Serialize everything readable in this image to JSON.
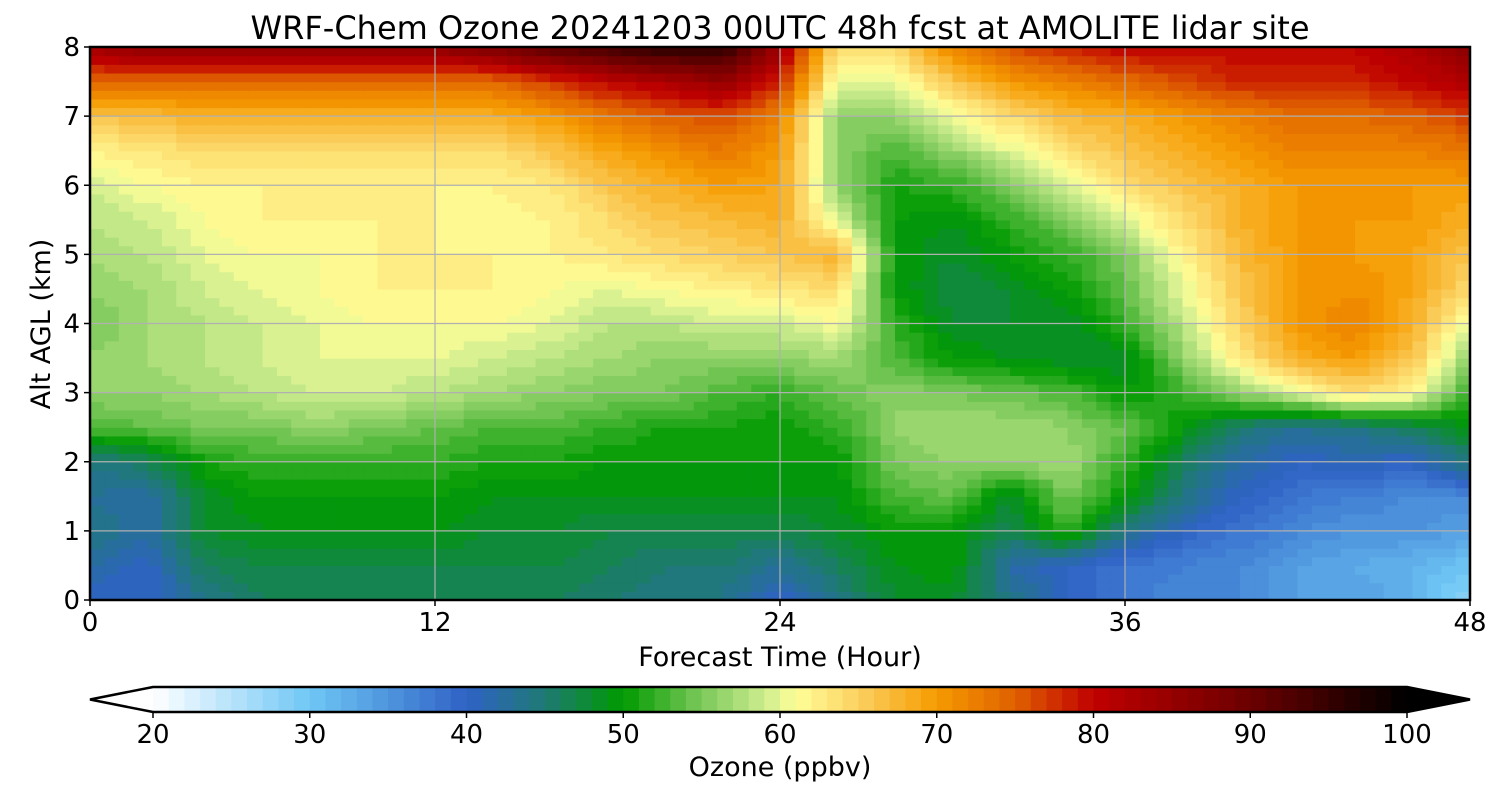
{
  "chart_data": {
    "type": "heatmap",
    "title": "WRF-Chem Ozone  20241203 00UTC 48h fcst at AMOLITE lidar site",
    "xlabel": "Forecast Time (Hour)",
    "ylabel": "Alt AGL (km)",
    "xlim": [
      0,
      48
    ],
    "ylim": [
      0,
      8
    ],
    "xticks": [
      "0",
      "12",
      "24",
      "36",
      "48"
    ],
    "yticks": [
      "0",
      "1",
      "2",
      "3",
      "4",
      "5",
      "6",
      "7",
      "8"
    ],
    "grid": true,
    "x": [
      0,
      2,
      4,
      6,
      8,
      10,
      12,
      14,
      16,
      18,
      20,
      22,
      24,
      26,
      28,
      30,
      32,
      34,
      36,
      38,
      40,
      42,
      44,
      46,
      48
    ],
    "y": [
      0,
      0.5,
      1,
      1.5,
      2,
      2.5,
      3,
      3.5,
      4,
      4.5,
      5,
      5.5,
      6,
      6.5,
      7,
      7.5,
      8
    ],
    "z": [
      [
        40,
        40,
        44,
        46,
        46,
        46,
        46,
        46,
        46,
        45,
        44,
        44,
        40,
        44,
        48,
        48,
        44,
        40,
        38,
        36,
        36,
        34,
        34,
        32,
        28
      ],
      [
        42,
        40,
        46,
        47,
        47,
        47,
        47,
        47,
        47,
        46,
        45,
        45,
        43,
        46,
        49,
        50,
        42,
        40,
        38,
        37,
        36,
        34,
        33,
        32,
        30
      ],
      [
        44,
        42,
        48,
        49,
        49,
        49,
        49,
        48,
        48,
        47,
        47,
        47,
        47,
        48,
        50,
        50,
        46,
        52,
        44,
        40,
        38,
        36,
        35,
        35,
        34
      ],
      [
        43,
        42,
        48,
        50,
        50,
        50,
        50,
        49,
        49,
        49,
        49,
        49,
        49,
        49,
        53,
        54,
        48,
        55,
        50,
        44,
        40,
        38,
        37,
        36,
        36
      ],
      [
        44,
        46,
        51,
        52,
        52,
        52,
        52,
        51,
        51,
        50,
        50,
        50,
        50,
        50,
        55,
        56,
        56,
        57,
        52,
        46,
        42,
        40,
        41,
        40,
        45
      ],
      [
        53,
        54,
        55,
        55,
        56,
        55,
        54,
        53,
        53,
        52,
        51,
        51,
        50,
        52,
        56,
        57,
        57,
        56,
        54,
        50,
        45,
        43,
        44,
        46,
        49
      ],
      [
        56,
        56,
        57,
        58,
        59,
        59,
        58,
        57,
        56,
        55,
        55,
        53,
        52,
        54,
        56,
        55,
        54,
        53,
        50,
        52,
        56,
        60,
        64,
        62,
        52
      ],
      [
        56,
        57,
        58,
        59,
        60,
        60,
        60,
        59,
        58,
        57,
        56,
        56,
        56,
        57,
        53,
        50,
        49,
        48,
        48,
        56,
        63,
        68,
        70,
        66,
        56
      ],
      [
        55,
        57,
        58,
        59,
        60,
        61,
        61,
        61,
        60,
        58,
        58,
        59,
        59,
        61,
        52,
        48,
        48,
        48,
        52,
        58,
        65,
        70,
        72,
        68,
        60
      ],
      [
        56,
        57,
        59,
        60,
        61,
        62,
        62,
        62,
        61,
        60,
        61,
        62,
        63,
        64,
        50,
        47,
        48,
        50,
        54,
        60,
        66,
        70,
        71,
        69,
        64
      ],
      [
        57,
        58,
        60,
        61,
        61,
        62,
        62,
        62,
        62,
        63,
        64,
        65,
        66,
        68,
        50,
        48,
        50,
        52,
        55,
        62,
        67,
        70,
        70,
        69,
        66
      ],
      [
        58,
        59,
        61,
        62,
        62,
        62,
        62,
        61,
        62,
        64,
        66,
        67,
        68,
        60,
        50,
        49,
        52,
        55,
        60,
        64,
        68,
        70,
        70,
        70,
        68
      ],
      [
        59,
        61,
        62,
        62,
        62,
        62,
        62,
        62,
        63,
        66,
        68,
        70,
        69,
        56,
        51,
        52,
        55,
        60,
        64,
        66,
        68,
        70,
        70,
        70,
        70
      ],
      [
        62,
        63,
        64,
        64,
        64,
        64,
        64,
        64,
        66,
        69,
        71,
        73,
        70,
        56,
        53,
        56,
        60,
        64,
        66,
        68,
        70,
        72,
        72,
        72,
        73
      ],
      [
        66,
        67,
        68,
        68,
        68,
        68,
        68,
        68,
        70,
        73,
        75,
        76,
        72,
        56,
        56,
        60,
        64,
        67,
        68,
        70,
        72,
        74,
        74,
        75,
        77
      ],
      [
        74,
        74,
        74,
        74,
        74,
        74,
        74,
        74,
        77,
        80,
        82,
        85,
        78,
        60,
        60,
        66,
        70,
        72,
        74,
        76,
        78,
        78,
        78,
        80,
        82
      ],
      [
        84,
        86,
        86,
        86,
        86,
        86,
        86,
        88,
        92,
        94,
        96,
        96,
        84,
        64,
        64,
        72,
        76,
        78,
        80,
        80,
        80,
        80,
        80,
        82,
        86
      ]
    ],
    "colorbar": {
      "label": "Ozone  (ppbv)",
      "min": 20,
      "max": 100,
      "step": 1,
      "extend": "both",
      "ticks": [
        "20",
        "30",
        "40",
        "50",
        "60",
        "70",
        "80",
        "90",
        "100"
      ],
      "stops": [
        {
          "v": 20,
          "c": "#ffffff"
        },
        {
          "v": 30,
          "c": "#6fc7f5"
        },
        {
          "v": 40,
          "c": "#2f62c6"
        },
        {
          "v": 45,
          "c": "#1e7a74"
        },
        {
          "v": 50,
          "c": "#009a00"
        },
        {
          "v": 55,
          "c": "#7cc95a"
        },
        {
          "v": 59,
          "c": "#ccec8e"
        },
        {
          "v": 61,
          "c": "#ffff99"
        },
        {
          "v": 65,
          "c": "#fbd060"
        },
        {
          "v": 70,
          "c": "#f59b00"
        },
        {
          "v": 75,
          "c": "#e06000"
        },
        {
          "v": 80,
          "c": "#c00000"
        },
        {
          "v": 90,
          "c": "#6b0000"
        },
        {
          "v": 100,
          "c": "#000000"
        }
      ]
    }
  }
}
